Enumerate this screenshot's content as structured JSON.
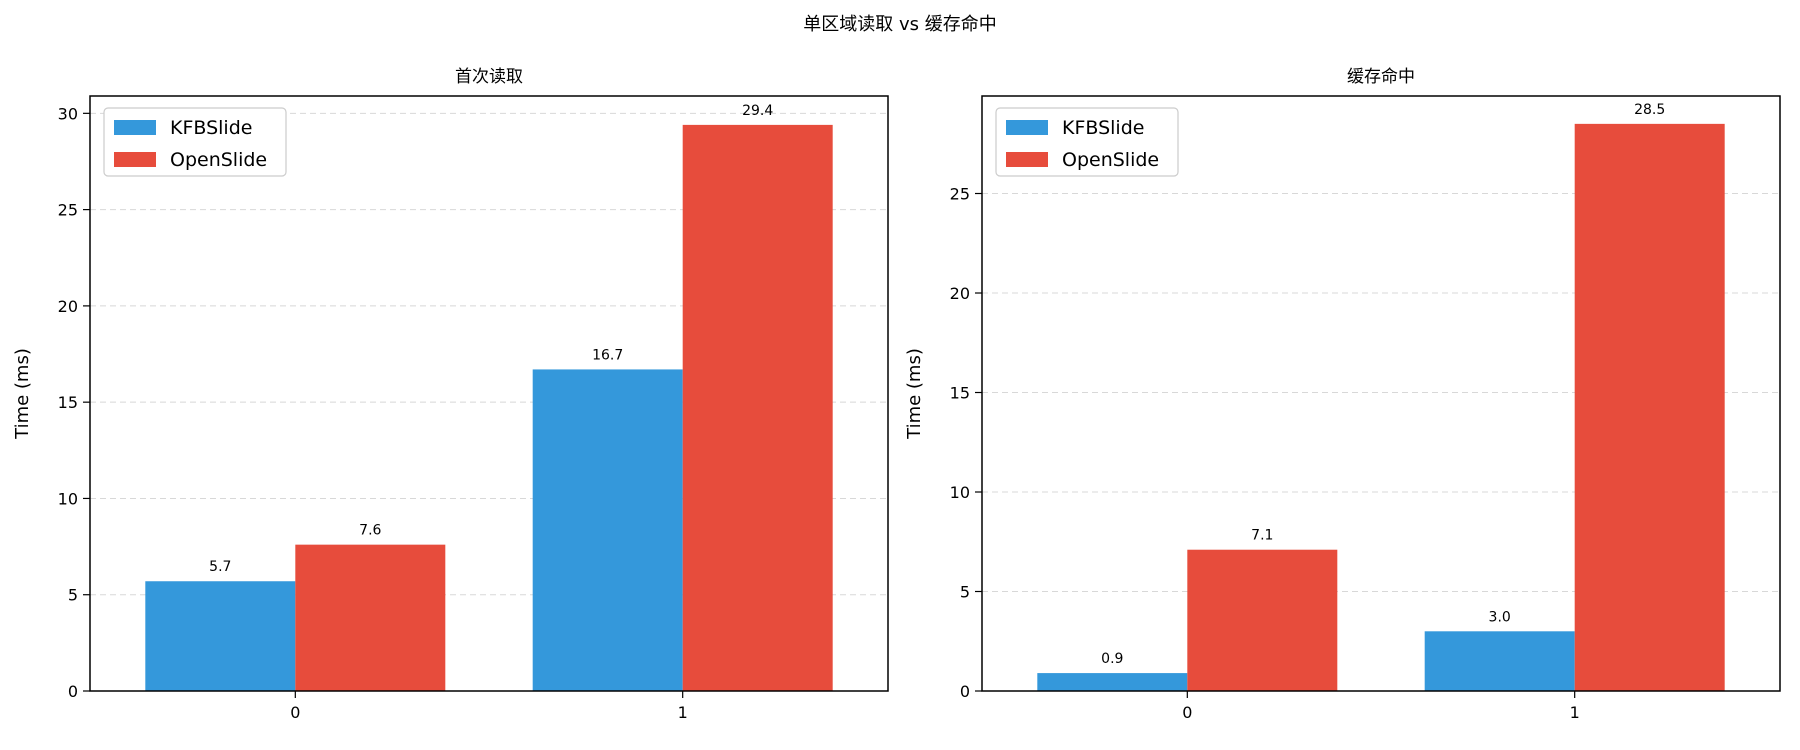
{
  "figure": {
    "suptitle": "单区域读取 vs 缓存命中"
  },
  "colors": {
    "kfbslide": "#3498db",
    "openslide": "#e74c3c"
  },
  "chart_data": [
    {
      "type": "bar",
      "title": "首次读取",
      "xlabel": "",
      "ylabel": "Time (ms)",
      "categories": [
        "0",
        "1"
      ],
      "ylim": [
        0,
        30.9
      ],
      "yticks": [
        0,
        5,
        10,
        15,
        20,
        25,
        30
      ],
      "grid": "y, dashed",
      "legend_position": "top-left",
      "series": [
        {
          "name": "KFBSlide",
          "color": "#3498db",
          "values": [
            5.7,
            16.7
          ],
          "labels": [
            "5.7",
            "16.7"
          ]
        },
        {
          "name": "OpenSlide",
          "color": "#e74c3c",
          "values": [
            7.6,
            29.4
          ],
          "labels": [
            "7.6",
            "29.4"
          ]
        }
      ]
    },
    {
      "type": "bar",
      "title": "缓存命中",
      "xlabel": "",
      "ylabel": "Time (ms)",
      "categories": [
        "0",
        "1"
      ],
      "ylim": [
        0,
        29.9
      ],
      "yticks": [
        0,
        5,
        10,
        15,
        20,
        25
      ],
      "grid": "y, dashed",
      "legend_position": "top-left",
      "series": [
        {
          "name": "KFBSlide",
          "color": "#3498db",
          "values": [
            0.9,
            3.0
          ],
          "labels": [
            "0.9",
            "3.0"
          ]
        },
        {
          "name": "OpenSlide",
          "color": "#e74c3c",
          "values": [
            7.1,
            28.5
          ],
          "labels": [
            "7.1",
            "28.5"
          ]
        }
      ]
    }
  ]
}
